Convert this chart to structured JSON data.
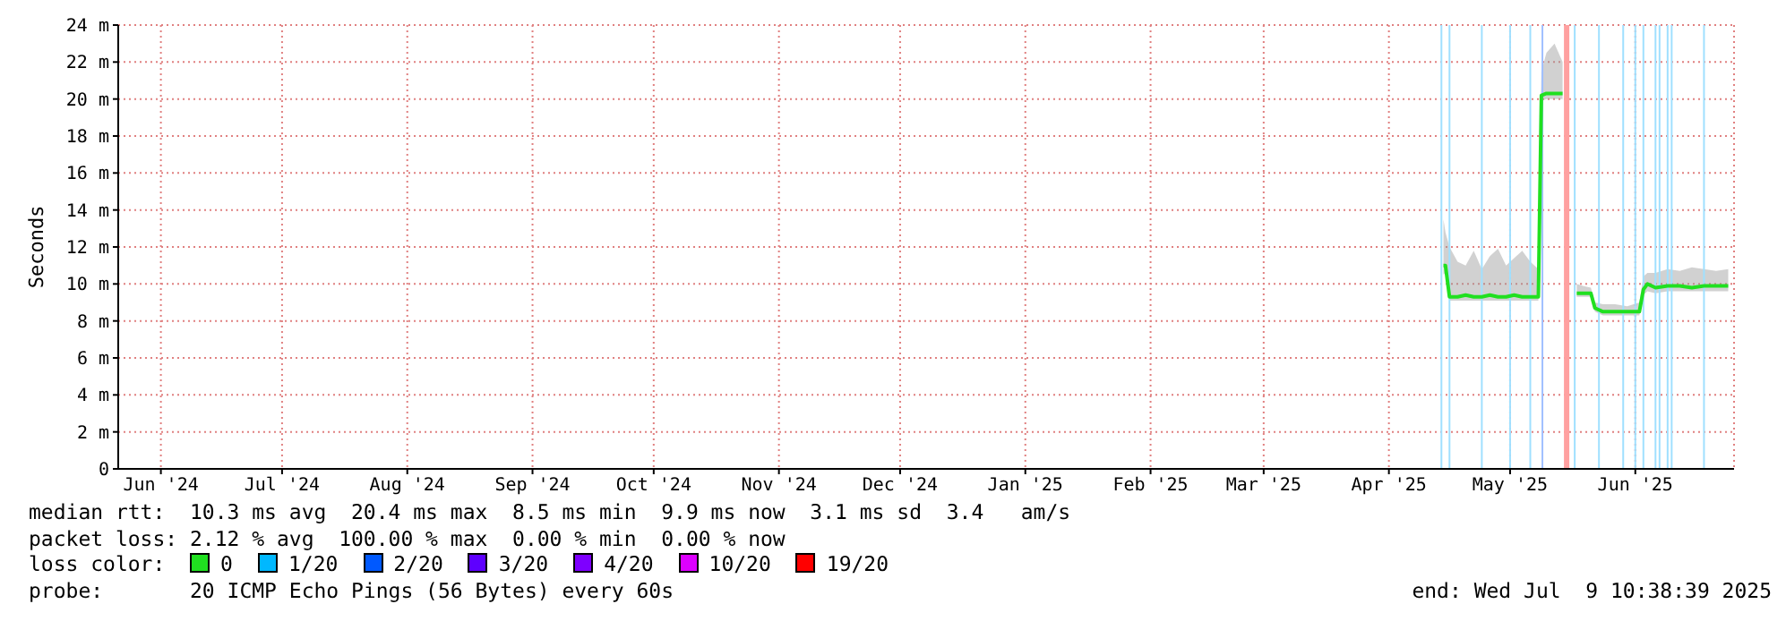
{
  "chart_data": {
    "type": "line",
    "ylabel": "Seconds",
    "legend_title": "loss color:",
    "legend": "bottom",
    "grid": true,
    "xlim": [
      "2024-06-04T10:38",
      "2025-07-09T10:38"
    ],
    "xticks": [
      {
        "value": "2024-06-15",
        "label": "Jun '24"
      },
      {
        "value": "2024-07-15",
        "label": "Jul '24"
      },
      {
        "value": "2024-08-15",
        "label": "Aug '24"
      },
      {
        "value": "2024-09-15",
        "label": "Sep '24"
      },
      {
        "value": "2024-10-15",
        "label": "Oct '24"
      },
      {
        "value": "2024-11-15",
        "label": "Nov '24"
      },
      {
        "value": "2024-12-15",
        "label": "Dec '24"
      },
      {
        "value": "2025-01-15",
        "label": "Jan '25"
      },
      {
        "value": "2025-02-15",
        "label": "Feb '25"
      },
      {
        "value": "2025-03-15",
        "label": "Mar '25"
      },
      {
        "value": "2025-04-15",
        "label": "Apr '25"
      },
      {
        "value": "2025-05-15",
        "label": "May '25"
      },
      {
        "value": "2025-06-15",
        "label": "Jun '25"
      }
    ],
    "ylim": [
      0,
      24
    ],
    "yticks": [
      0,
      {
        "value": 2,
        "label": "2 m"
      },
      {
        "value": 4,
        "label": "4 m"
      },
      {
        "value": 6,
        "label": "6 m"
      },
      {
        "value": 8,
        "label": "8 m"
      },
      {
        "value": 10,
        "label": "10 m"
      },
      {
        "value": 12,
        "label": "12 m"
      },
      {
        "value": 14,
        "label": "14 m"
      },
      {
        "value": 16,
        "label": "16 m"
      },
      {
        "value": 18,
        "label": "18 m"
      },
      {
        "value": 20,
        "label": "20 m"
      },
      {
        "value": 22,
        "label": "22 m"
      },
      {
        "value": 24,
        "label": "24 m"
      }
    ],
    "series": [
      {
        "name": "0",
        "color": "#20e020",
        "x": [
          "2025-04-28T12:00",
          "2025-04-29",
          "2025-04-30",
          "2025-05-02",
          "2025-05-04",
          "2025-05-06",
          "2025-05-08",
          "2025-05-10",
          "2025-05-12",
          "2025-05-14",
          "2025-05-16",
          "2025-05-18",
          "2025-05-20",
          "2025-05-22",
          "2025-05-22T18:00",
          "2025-05-24",
          "2025-05-26",
          "2025-05-28",
          "2025-05-29",
          "2025-05-31T12:00",
          "2025-06-02",
          "2025-06-04",
          "2025-06-05",
          "2025-06-07",
          "2025-06-10",
          "2025-06-13",
          "2025-06-16",
          "2025-06-17",
          "2025-06-18",
          "2025-06-20",
          "2025-06-23",
          "2025-06-26",
          "2025-06-29",
          "2025-07-02",
          "2025-07-05",
          "2025-07-08"
        ],
        "values": [
          11,
          11,
          9.3,
          9.3,
          9.4,
          9.3,
          9.3,
          9.4,
          9.3,
          9.3,
          9.4,
          9.3,
          9.3,
          9.3,
          20.2,
          20.3,
          20.3,
          20.3,
          null,
          9.5,
          9.5,
          9.5,
          8.7,
          8.5,
          8.5,
          8.5,
          8.5,
          9.7,
          10,
          9.8,
          9.9,
          9.9,
          9.8,
          9.9,
          9.9,
          9.9
        ],
        "lower": [
          10.5,
          10.6,
          9.1,
          9.1,
          9.1,
          9.1,
          9.1,
          9.1,
          9.1,
          9.1,
          9.1,
          9.1,
          9.1,
          9.1,
          19.9,
          20,
          20,
          20,
          null,
          9.3,
          9.3,
          9.3,
          8.5,
          8.3,
          8.3,
          8.3,
          8.3,
          9.4,
          9.6,
          9.5,
          9.6,
          9.6,
          9.6,
          9.6,
          9.6,
          9.6
        ],
        "upper": [
          13.5,
          12.8,
          12,
          11.2,
          11,
          11.8,
          10.8,
          11.5,
          11.9,
          11,
          11.4,
          11.8,
          11.2,
          10.8,
          21.5,
          22.5,
          23,
          22,
          null,
          10,
          9.9,
          9.8,
          9,
          8.9,
          8.9,
          8.8,
          9,
          10.4,
          10.6,
          10.6,
          10.8,
          10.7,
          10.9,
          10.8,
          10.7,
          10.8
        ]
      },
      {
        "name": "1/20",
        "color": "#00b8ff"
      },
      {
        "name": "2/20",
        "color": "#0059ff"
      },
      {
        "name": "3/20",
        "color": "#5e00ff"
      },
      {
        "name": "4/20",
        "color": "#7e00ff"
      },
      {
        "name": "10/20",
        "color": "#dd00ff"
      },
      {
        "name": "19/20",
        "color": "#ff0000"
      }
    ],
    "ref_lines": [
      {
        "axis": "x",
        "value": "2025-04-28",
        "color": "#a0e0ff"
      },
      {
        "axis": "x",
        "value": "2025-04-30",
        "color": "#a0e0ff"
      },
      {
        "axis": "x",
        "value": "2025-05-08",
        "color": "#a0e0ff"
      },
      {
        "axis": "x",
        "value": "2025-05-15",
        "color": "#a0e0ff"
      },
      {
        "axis": "x",
        "value": "2025-05-20",
        "color": "#a0e0ff"
      },
      {
        "axis": "x",
        "value": "2025-05-23",
        "color": "#a0c0ff"
      },
      {
        "axis": "x",
        "value": "2025-05-29",
        "color": "#ffa0a0"
      },
      {
        "axis": "x",
        "value": "2025-05-31",
        "color": "#a0e0ff"
      },
      {
        "axis": "x",
        "value": "2025-06-06",
        "color": "#a0e0ff"
      },
      {
        "axis": "x",
        "value": "2025-06-12",
        "color": "#a0e0ff"
      },
      {
        "axis": "x",
        "value": "2025-06-15",
        "color": "#a0e0ff"
      },
      {
        "axis": "x",
        "value": "2025-06-17",
        "color": "#a0e0ff"
      },
      {
        "axis": "x",
        "value": "2025-06-20",
        "color": "#a0e0ff"
      },
      {
        "axis": "x",
        "value": "2025-06-21",
        "color": "#a0e0ff"
      },
      {
        "axis": "x",
        "value": "2025-06-23",
        "color": "#a0e0ff"
      },
      {
        "axis": "x",
        "value": "2025-06-24",
        "color": "#a0e0ff"
      },
      {
        "axis": "x",
        "value": "2025-07-02",
        "color": "#a0e0ff"
      }
    ],
    "annotations": [
      "median rtt:  10.3 ms avg  20.4 ms max  8.5 ms min  9.9 ms now  3.1 ms sd  3.4   am/s",
      "packet loss: 2.12 % avg  100.00 % max  0.00 % min  0.00 % now",
      "probe:       20 ICMP Echo Pings (56 Bytes) every 60s",
      "end: Wed Jul  9 10:38:39 2025"
    ]
  }
}
